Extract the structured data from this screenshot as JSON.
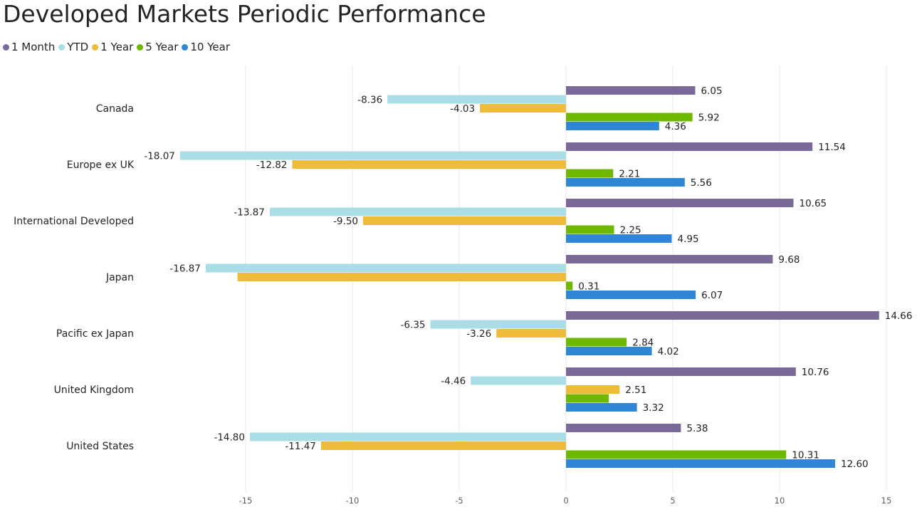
{
  "title": "Developed Markets Periodic Performance",
  "colors": {
    "1 Month": "#7a6a9a",
    "YTD": "#aadde6",
    "1 Year": "#eebb3b",
    "5 Year": "#6fb800",
    "10 Year": "#2f86d6",
    "grid": "#e8e8e8"
  },
  "chart_data": {
    "type": "bar",
    "orientation": "horizontal",
    "title": "Developed Markets Periodic Performance",
    "xlabel": "",
    "ylabel": "",
    "legend_position": "top-left",
    "grid": true,
    "xlim": [
      -18.3,
      15.3
    ],
    "x_ticks": [
      -15,
      -10,
      -5,
      0,
      5,
      10,
      15
    ],
    "categories": [
      "Canada",
      "Europe ex UK",
      "International Developed",
      "Japan",
      "Pacific ex Japan",
      "United Kingdom",
      "United States"
    ],
    "series": [
      {
        "name": "1 Month",
        "values": [
          6.05,
          11.54,
          10.65,
          9.68,
          14.66,
          10.76,
          5.38
        ]
      },
      {
        "name": "YTD",
        "values": [
          -8.36,
          -18.07,
          -13.87,
          -16.87,
          -6.35,
          -4.46,
          -14.8
        ]
      },
      {
        "name": "1 Year",
        "values": [
          -4.03,
          -12.82,
          -9.5,
          -15.38,
          -3.26,
          2.51,
          -11.47
        ]
      },
      {
        "name": "5 Year",
        "values": [
          5.92,
          2.21,
          2.25,
          0.31,
          2.84,
          2.0,
          10.31
        ]
      },
      {
        "name": "10 Year",
        "values": [
          4.36,
          5.56,
          4.95,
          6.07,
          4.02,
          3.32,
          12.6
        ]
      }
    ],
    "labels": [
      [
        "6.05",
        "11.54",
        "10.65",
        "9.68",
        "14.66",
        "10.76",
        "5.38"
      ],
      [
        "-8.36",
        "-18.07",
        "-13.87",
        "-16.87",
        "-6.35",
        "-4.46",
        "-14.80"
      ],
      [
        "-4.03",
        "-12.82",
        "-9.50",
        "",
        "-3.26",
        "2.51",
        "-11.47"
      ],
      [
        "5.92",
        "2.21",
        "2.25",
        "0.31",
        "2.84",
        "",
        "10.31"
      ],
      [
        "4.36",
        "5.56",
        "4.95",
        "6.07",
        "4.02",
        "3.32",
        "12.60"
      ]
    ]
  }
}
